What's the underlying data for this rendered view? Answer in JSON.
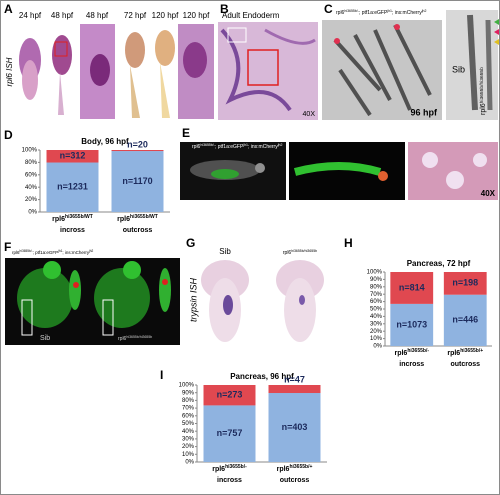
{
  "panels": {
    "A": {
      "label": "A",
      "stages": [
        "24 hpf",
        "48 hpf",
        "48 hpf",
        "72 hpf",
        "120 hpf",
        "120 hpf"
      ],
      "side_label": "rpl6 ISH"
    },
    "B": {
      "label": "B",
      "title": "Adult Endoderm",
      "magnification": "40X"
    },
    "C": {
      "label": "C",
      "genotype": [
        {
          "text": "rpl6"
        },
        {
          "text": "hi3655b/-",
          "sup": true
        },
        {
          "text": "; ptf1a:eGFP"
        },
        {
          "text": "jh1",
          "sup": true
        },
        {
          "text": "; ins:mCherry"
        },
        {
          "text": "jh2",
          "sup": true
        }
      ],
      "stage": "96 hpf",
      "sib": "Sib",
      "mutant": [
        {
          "text": "rpl6"
        },
        {
          "text": "hi3655b/hi3655b",
          "sup": true
        }
      ]
    },
    "D": {
      "label": "D"
    },
    "E": {
      "label": "E",
      "genotype": [
        {
          "text": "rpl6"
        },
        {
          "text": "hi3655b/-",
          "sup": true
        },
        {
          "text": "; ptf1a:eGFP"
        },
        {
          "text": "jh1",
          "sup": true
        },
        {
          "text": "; ins:mCherry"
        },
        {
          "text": "jh2",
          "sup": true
        }
      ],
      "magnification": "40X"
    },
    "F": {
      "label": "F",
      "genotype": [
        {
          "text": "rpl6"
        },
        {
          "text": "hi3655b/-",
          "sup": true
        },
        {
          "text": "; ptf1a:eGFP"
        },
        {
          "text": "jh1",
          "sup": true
        },
        {
          "text": "; ins:mCherry"
        },
        {
          "text": "jh2",
          "sup": true
        }
      ],
      "sib": "Sib",
      "mutant": [
        {
          "text": "rpl6"
        },
        {
          "text": "hi3655b/hi3655b",
          "sup": true
        }
      ]
    },
    "G": {
      "label": "G",
      "sib": "Sib",
      "side_label": "trypsin ISH",
      "mutant": [
        {
          "text": "rpl6"
        },
        {
          "text": "hi3655b/hi3655b",
          "sup": true
        }
      ]
    },
    "H": {
      "label": "H"
    },
    "I": {
      "label": "I"
    }
  },
  "chart_data": [
    {
      "type": "bar",
      "stacked": true,
      "title": "Body, 96 hpf",
      "categories": [
        "incross",
        "outcross"
      ],
      "genotypes": [
        {
          "gene": "rpl6",
          "allele": "hi3655b/WT"
        },
        {
          "gene": "rpl6",
          "allele": "hi3655b/WT"
        }
      ],
      "series": [
        {
          "color": "#8fb3e0",
          "values": [
            79.8,
            98.3
          ],
          "n_labels": [
            "n=1231",
            "n=1170"
          ]
        },
        {
          "color": "#e04850",
          "values": [
            20.2,
            1.7
          ],
          "n_labels": [
            "n=312",
            "n=20"
          ]
        }
      ],
      "ylim": [
        0,
        100
      ],
      "yticks": [
        {
          "value": 0,
          "label": "0%"
        },
        {
          "value": 20,
          "label": "20%"
        },
        {
          "value": 40,
          "label": "40%"
        },
        {
          "value": 60,
          "label": "60%"
        },
        {
          "value": 80,
          "label": "80%"
        },
        {
          "value": 100,
          "label": "100%"
        }
      ]
    },
    {
      "type": "bar",
      "stacked": true,
      "title": "Pancreas, 72 hpf",
      "categories": [
        "incross",
        "outcross"
      ],
      "genotypes": [
        {
          "gene": "rpl6",
          "allele": "hi3655b/-"
        },
        {
          "gene": "rpl6",
          "allele": "hi3655b/+"
        }
      ],
      "series": [
        {
          "color": "#8fb3e0",
          "values": [
            56.9,
            69.3
          ],
          "n_labels": [
            "n=1073",
            "n=446"
          ]
        },
        {
          "color": "#e04850",
          "values": [
            43.1,
            30.7
          ],
          "n_labels": [
            "n=814",
            "n=198"
          ]
        }
      ],
      "ylim": [
        0,
        100
      ],
      "yticks": [
        {
          "value": 0,
          "label": "0%"
        },
        {
          "value": 10,
          "label": "10%"
        },
        {
          "value": 20,
          "label": "20%"
        },
        {
          "value": 30,
          "label": "30%"
        },
        {
          "value": 40,
          "label": "40%"
        },
        {
          "value": 50,
          "label": "50%"
        },
        {
          "value": 60,
          "label": "60%"
        },
        {
          "value": 70,
          "label": "70%"
        },
        {
          "value": 80,
          "label": "80%"
        },
        {
          "value": 90,
          "label": "90%"
        },
        {
          "value": 100,
          "label": "100%"
        }
      ]
    },
    {
      "type": "bar",
      "stacked": true,
      "title": "Pancreas, 96 hpf",
      "categories": [
        "incross",
        "outcross"
      ],
      "genotypes": [
        {
          "gene": "rpl6",
          "allele": "hi3655b/-"
        },
        {
          "gene": "rpl6",
          "allele": "hi3655b/+"
        }
      ],
      "series": [
        {
          "color": "#8fb3e0",
          "values": [
            73.5,
            89.6
          ],
          "n_labels": [
            "n=757",
            "n=403"
          ]
        },
        {
          "color": "#e04850",
          "values": [
            26.5,
            10.4
          ],
          "n_labels": [
            "n=273",
            "n=47"
          ]
        }
      ],
      "ylim": [
        0,
        100
      ],
      "yticks": [
        {
          "value": 0,
          "label": "0%"
        },
        {
          "value": 10,
          "label": "10%"
        },
        {
          "value": 20,
          "label": "20%"
        },
        {
          "value": 30,
          "label": "30%"
        },
        {
          "value": 40,
          "label": "40%"
        },
        {
          "value": 50,
          "label": "50%"
        },
        {
          "value": 60,
          "label": "60%"
        },
        {
          "value": 70,
          "label": "70%"
        },
        {
          "value": 80,
          "label": "80%"
        },
        {
          "value": 90,
          "label": "90%"
        },
        {
          "value": 100,
          "label": "100%"
        }
      ]
    }
  ]
}
